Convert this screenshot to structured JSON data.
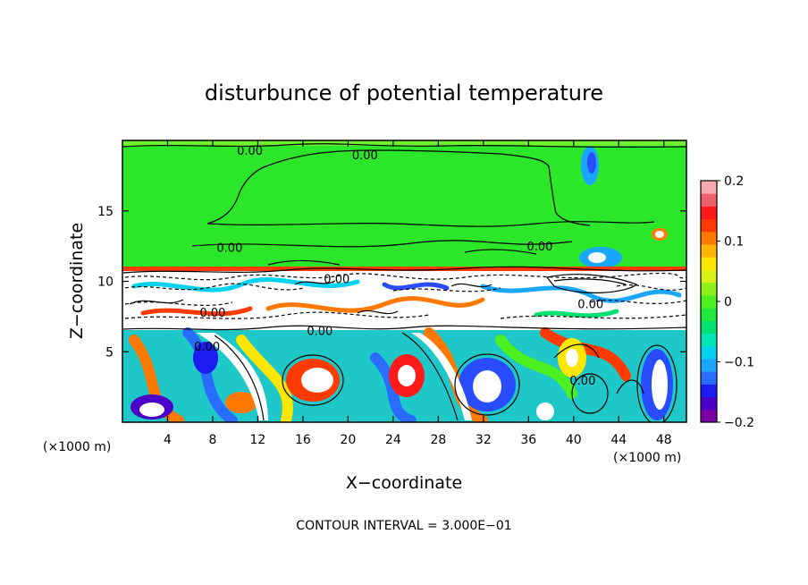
{
  "chart_data": {
    "type": "heatmap",
    "title": "disturbunce of potential temperature",
    "xlabel": "X−coordinate",
    "ylabel": "Z−coordinate",
    "x_unit_left": "(×1000 m)",
    "x_unit_right": "(×1000 m)",
    "xlim": [
      0,
      50
    ],
    "ylim": [
      0,
      20
    ],
    "x_ticks": [
      4,
      8,
      12,
      16,
      20,
      24,
      28,
      32,
      36,
      40,
      44,
      48
    ],
    "y_ticks": [
      5,
      10,
      15
    ],
    "contour_labels": [
      {
        "text": "0.00",
        "x": 11.3,
        "z": 19.3
      },
      {
        "text": "0.00",
        "x": 21.5,
        "z": 19.0
      },
      {
        "text": "0.00",
        "x": 9.5,
        "z": 12.4
      },
      {
        "text": "0.00",
        "x": 37.0,
        "z": 12.5
      },
      {
        "text": "0.00",
        "x": 19.0,
        "z": 10.2
      },
      {
        "text": "0.00",
        "x": 8.0,
        "z": 7.8
      },
      {
        "text": "0.00",
        "x": 7.5,
        "z": 5.4
      },
      {
        "text": "0.00",
        "x": 17.5,
        "z": 6.5
      },
      {
        "text": "0.00",
        "x": 41.5,
        "z": 8.4
      },
      {
        "text": "0.00",
        "x": 40.8,
        "z": 3.0
      }
    ],
    "colorbar": {
      "min": -0.2,
      "max": 0.2,
      "tick_labels": [
        "0.2",
        "0.1",
        "0",
        "−0.1",
        "−0.2"
      ],
      "tick_values": [
        0.2,
        0.1,
        0,
        -0.1,
        -0.2
      ],
      "colors": [
        "#7a00a8",
        "#4a00c8",
        "#1c1cf0",
        "#2a6cff",
        "#1aa6ff",
        "#00d2f0",
        "#00e6b4",
        "#00e070",
        "#22e83a",
        "#4cf020",
        "#8ef01a",
        "#d6f018",
        "#ffe600",
        "#ffb400",
        "#ff7800",
        "#ff3a00",
        "#ff1a1a",
        "#f0606a",
        "#f7a9b0"
      ]
    },
    "grid": false,
    "legend": "colorbar-right",
    "footer": "CONTOUR INTERVAL = 3.000E−01"
  }
}
